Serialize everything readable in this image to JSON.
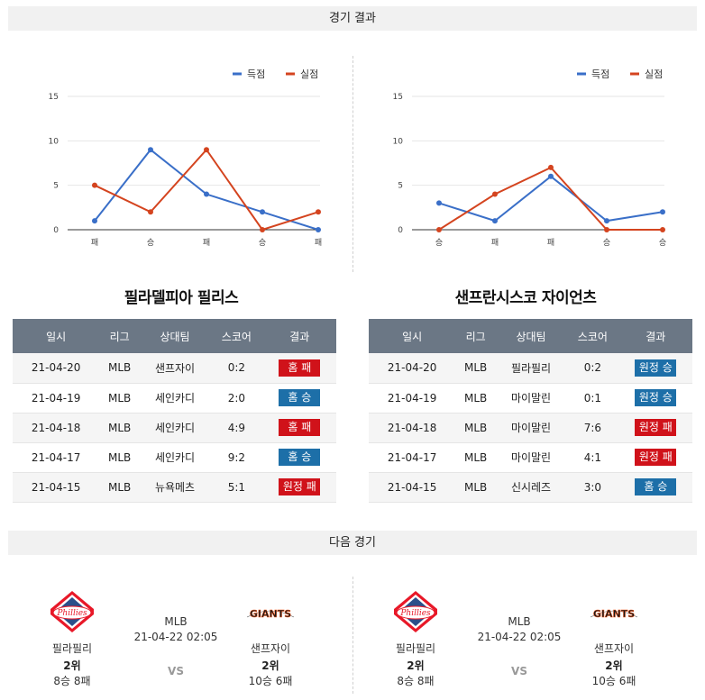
{
  "sections": {
    "results": "경기 결과",
    "next": "다음 경기"
  },
  "charts": [
    {
      "legend": {
        "scored": "득점",
        "allowed": "실점"
      },
      "colors": {
        "scored": "#3a6fc8",
        "allowed": "#d4441f"
      },
      "chart_data": {
        "type": "line",
        "categories": [
          "패",
          "승",
          "패",
          "승",
          "패"
        ],
        "ylim": [
          0,
          15
        ],
        "yticks": [
          0,
          5,
          10,
          15
        ],
        "series": [
          {
            "name": "득점",
            "values": [
              1,
              9,
              4,
              2,
              0
            ]
          },
          {
            "name": "실점",
            "values": [
              5,
              2,
              9,
              0,
              2
            ]
          }
        ]
      }
    },
    {
      "legend": {
        "scored": "득점",
        "allowed": "실점"
      },
      "colors": {
        "scored": "#3a6fc8",
        "allowed": "#d4441f"
      },
      "chart_data": {
        "type": "line",
        "categories": [
          "승",
          "패",
          "패",
          "승",
          "승"
        ],
        "ylim": [
          0,
          15
        ],
        "yticks": [
          0,
          5,
          10,
          15
        ],
        "series": [
          {
            "name": "득점",
            "values": [
              3,
              1,
              6,
              1,
              2
            ]
          },
          {
            "name": "실점",
            "values": [
              0,
              4,
              7,
              0,
              0
            ]
          }
        ]
      }
    }
  ],
  "teams": [
    {
      "title": "필라델피아 필리스",
      "headers": [
        "일시",
        "리그",
        "상대팀",
        "스코어",
        "결과"
      ],
      "rows": [
        {
          "date": "21-04-20",
          "league": "MLB",
          "opp": "샌프자이",
          "score": "0:2",
          "result": "홈 패",
          "win": false
        },
        {
          "date": "21-04-19",
          "league": "MLB",
          "opp": "세인카디",
          "score": "2:0",
          "result": "홈 승",
          "win": true
        },
        {
          "date": "21-04-18",
          "league": "MLB",
          "opp": "세인카디",
          "score": "4:9",
          "result": "홈 패",
          "win": false
        },
        {
          "date": "21-04-17",
          "league": "MLB",
          "opp": "세인카디",
          "score": "9:2",
          "result": "홈 승",
          "win": true
        },
        {
          "date": "21-04-15",
          "league": "MLB",
          "opp": "뉴욕메츠",
          "score": "5:1",
          "result": "원정 패",
          "win": false
        }
      ]
    },
    {
      "title": "샌프란시스코 자이언츠",
      "headers": [
        "일시",
        "리그",
        "상대팀",
        "스코어",
        "결과"
      ],
      "rows": [
        {
          "date": "21-04-20",
          "league": "MLB",
          "opp": "필라필리",
          "score": "0:2",
          "result": "원정 승",
          "win": true
        },
        {
          "date": "21-04-19",
          "league": "MLB",
          "opp": "마이말린",
          "score": "0:1",
          "result": "원정 승",
          "win": true
        },
        {
          "date": "21-04-18",
          "league": "MLB",
          "opp": "마이말린",
          "score": "7:6",
          "result": "원정 패",
          "win": false
        },
        {
          "date": "21-04-17",
          "league": "MLB",
          "opp": "마이말린",
          "score": "4:1",
          "result": "원정 패",
          "win": false
        },
        {
          "date": "21-04-15",
          "league": "MLB",
          "opp": "신시레즈",
          "score": "3:0",
          "result": "홈 승",
          "win": true
        }
      ]
    }
  ],
  "next_matches": [
    {
      "league": "MLB",
      "datetime": "21-04-22 02:05",
      "vs": "VS",
      "home": {
        "name": "필라필리",
        "rank": "2위",
        "record": "8승 8패",
        "logo": "phillies-logo",
        "logo_text": "Phillies"
      },
      "away": {
        "name": "샌프자이",
        "rank": "2위",
        "record": "10승 6패",
        "logo": "giants-logo",
        "logo_text": "GIANTS"
      }
    },
    {
      "league": "MLB",
      "datetime": "21-04-22 02:05",
      "vs": "VS",
      "home": {
        "name": "필라필리",
        "rank": "2위",
        "record": "8승 8패",
        "logo": "phillies-logo",
        "logo_text": "Phillies"
      },
      "away": {
        "name": "샌프자이",
        "rank": "2위",
        "record": "10승 6패",
        "logo": "giants-logo",
        "logo_text": "GIANTS"
      }
    }
  ]
}
